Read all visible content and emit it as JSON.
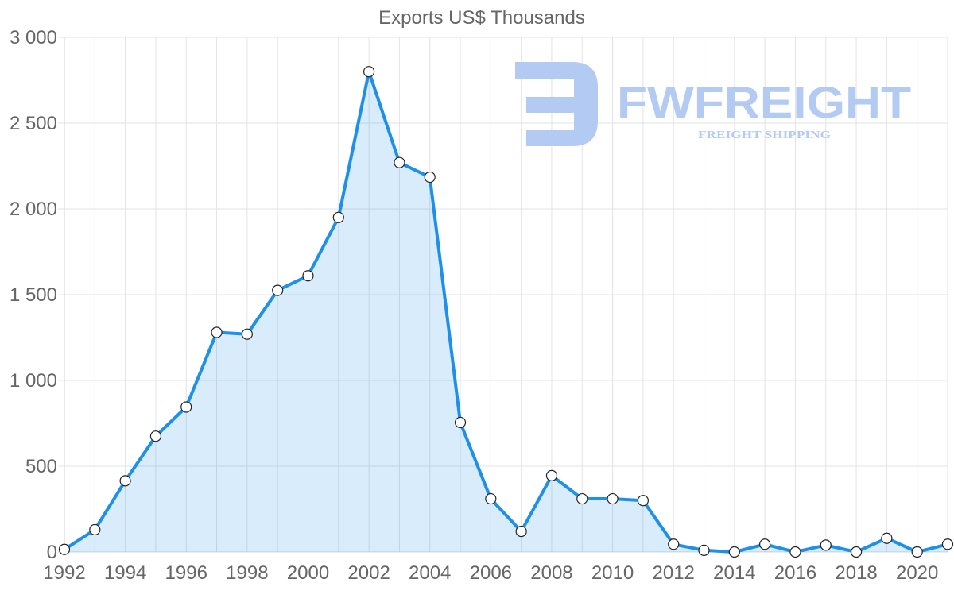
{
  "chart_data": {
    "type": "area",
    "title": "Exports US$ Thousands",
    "xlabel": "",
    "ylabel": "",
    "x": [
      1992,
      1993,
      1994,
      1995,
      1996,
      1997,
      1998,
      1999,
      2000,
      2001,
      2002,
      2003,
      2004,
      2005,
      2006,
      2007,
      2008,
      2009,
      2010,
      2011,
      2012,
      2013,
      2014,
      2015,
      2016,
      2017,
      2018,
      2019,
      2020,
      2021
    ],
    "series": [
      {
        "name": "Exports",
        "values": [
          15,
          130,
          415,
          675,
          845,
          1280,
          1270,
          1525,
          1610,
          1950,
          2800,
          2270,
          2185,
          755,
          310,
          120,
          445,
          310,
          310,
          300,
          45,
          10,
          0,
          45,
          0,
          40,
          0,
          80,
          0,
          45
        ]
      }
    ],
    "xlim": [
      1992,
      2021
    ],
    "ylim": [
      0,
      3000
    ],
    "yticks": [
      0,
      500,
      1000,
      1500,
      2000,
      2500,
      3000
    ],
    "ytick_labels": [
      "0",
      "500",
      "1 000",
      "1 500",
      "2 000",
      "2 500",
      "3 000"
    ],
    "xticks": [
      1992,
      1994,
      1996,
      1998,
      2000,
      2002,
      2004,
      2006,
      2008,
      2010,
      2012,
      2014,
      2016,
      2018,
      2020
    ],
    "grid": true,
    "legend": "none"
  },
  "watermark": {
    "brand": "FWFREIGHT",
    "tagline": "FREIGHT SHIPPING",
    "color": "#b3cbf2"
  },
  "colors": {
    "line": "#1e90e8",
    "fill": "#d6eafb",
    "grid": "#e3e3e3",
    "text": "#666666"
  }
}
